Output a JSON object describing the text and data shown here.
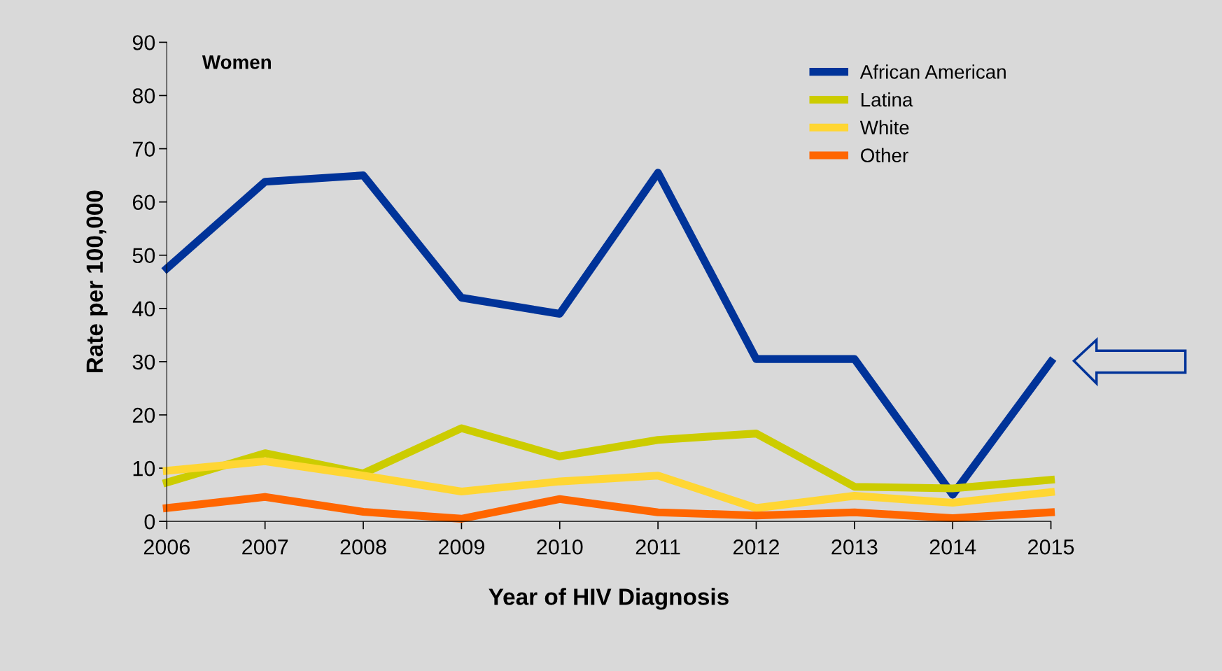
{
  "chart_data": {
    "type": "line",
    "xlabel": "Year of HIV Diagnosis",
    "ylabel": "Rate per 100,000",
    "annotations": [
      "Women"
    ],
    "x": [
      2006,
      2007,
      2008,
      2009,
      2010,
      2011,
      2012,
      2013,
      2014,
      2015
    ],
    "xlim": [
      2006,
      2015
    ],
    "xticks": [
      2006,
      2007,
      2008,
      2009,
      2010,
      2011,
      2012,
      2013,
      2014,
      2015
    ],
    "ylim": [
      0,
      90
    ],
    "yticks": [
      0,
      10,
      20,
      30,
      40,
      50,
      60,
      70,
      80,
      90
    ],
    "grid": false,
    "legend": "top right",
    "marker": "none",
    "line_style": "solid",
    "series": [
      {
        "name": "African American",
        "color": "#003399",
        "values": [
          47.5,
          63.8,
          65,
          42,
          39,
          65.5,
          30.5,
          30.5,
          5,
          30
        ]
      },
      {
        "name": "Latina",
        "color": "#cccc00",
        "values": [
          7.3,
          12.8,
          9,
          17.5,
          12.2,
          15.3,
          16.5,
          6.5,
          6.2,
          7.8
        ]
      },
      {
        "name": "White",
        "color": "#ffd633",
        "values": [
          9.5,
          11.3,
          8.6,
          5.6,
          7.5,
          8.6,
          2.5,
          4.8,
          3.5,
          5.5
        ]
      },
      {
        "name": "Other",
        "color": "#ff6600",
        "values": [
          2.5,
          4.6,
          1.8,
          0.5,
          4.2,
          1.7,
          1.1,
          1.7,
          0.6,
          1.7
        ]
      }
    ]
  }
}
